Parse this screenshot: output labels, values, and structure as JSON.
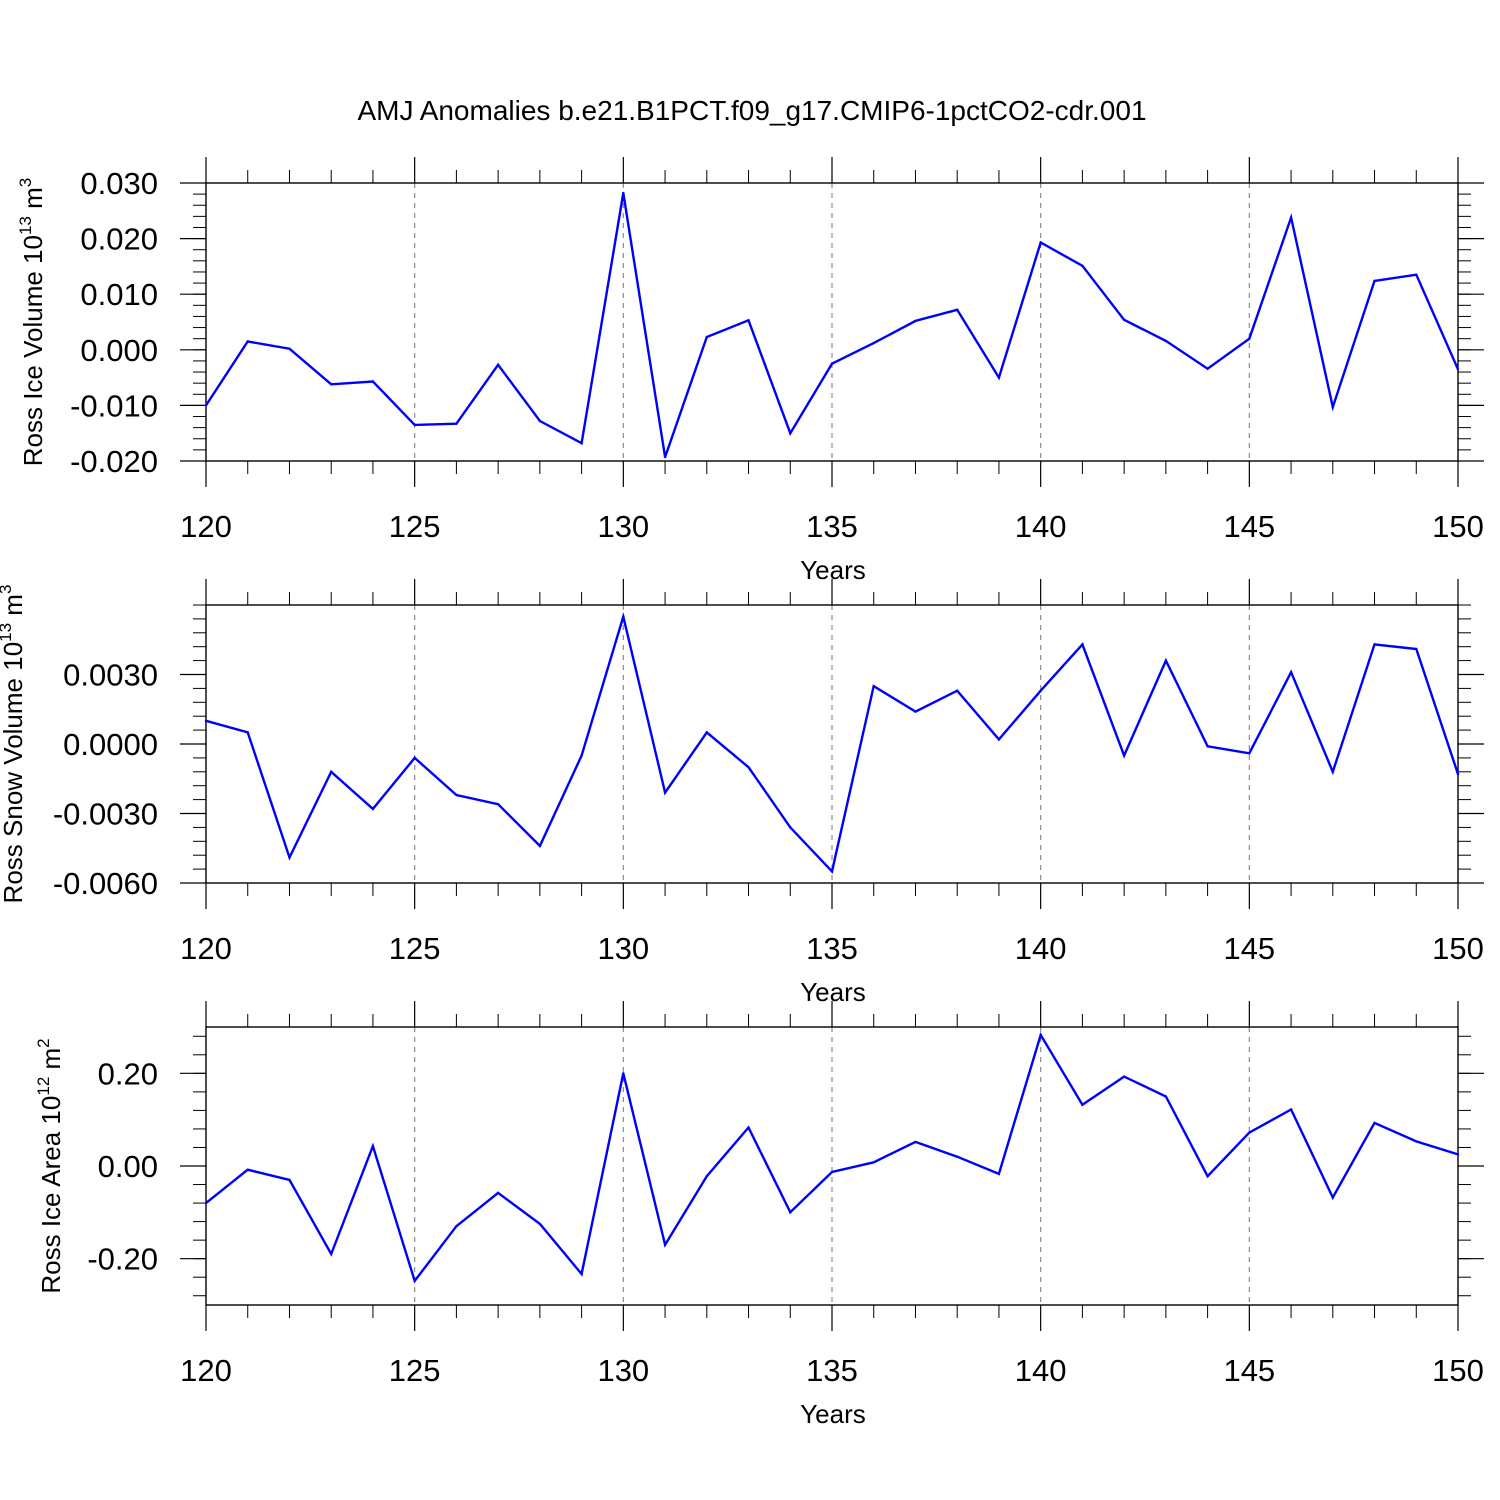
{
  "title": "AMJ Anomalies b.e21.B1PCT.f09_g17.CMIP6-1pctCO2-cdr.001",
  "colors": {
    "line": "#0000ff",
    "axis": "#000000",
    "grid": "#8c8c8c"
  },
  "chart_data": [
    {
      "type": "line",
      "ylabel": {
        "text": "Ross Ice Volume 10",
        "exp": "13",
        "unit": "m",
        "unit_exp": "3"
      },
      "xlabel": "Years",
      "xlim": [
        120,
        150
      ],
      "ylim": [
        -0.02,
        0.03
      ],
      "x_ticks": [
        "120",
        "125",
        "130",
        "135",
        "140",
        "145",
        "150"
      ],
      "y_ticks": [
        {
          "value": 0.03,
          "label": "0.030"
        },
        {
          "value": 0.02,
          "label": "0.020"
        },
        {
          "value": 0.01,
          "label": "0.010"
        },
        {
          "value": 0.0,
          "label": "0.000"
        },
        {
          "value": -0.01,
          "label": "-0.010"
        },
        {
          "value": -0.02,
          "label": "-0.020"
        }
      ],
      "grid": "dashed vertical lines at major x ticks",
      "x": [
        120,
        121,
        122,
        123,
        124,
        125,
        126,
        127,
        128,
        129,
        130,
        131,
        132,
        133,
        134,
        135,
        136,
        137,
        138,
        139,
        140,
        141,
        142,
        143,
        144,
        145,
        146,
        147,
        148,
        149,
        150
      ],
      "values": [
        -0.01,
        0.0015,
        0.0002,
        -0.0062,
        -0.0057,
        -0.0135,
        -0.0133,
        -0.0027,
        -0.0128,
        -0.0168,
        0.0282,
        -0.0193,
        0.0023,
        0.0053,
        -0.015,
        -0.0025,
        0.0012,
        0.0052,
        0.0072,
        -0.005,
        0.0193,
        0.0151,
        0.0054,
        0.0016,
        -0.0034,
        0.002,
        0.0238,
        -0.0103,
        0.0124,
        0.0135,
        -0.0035
      ]
    },
    {
      "type": "line",
      "ylabel": {
        "text": "Ross Snow Volume 10",
        "exp": "13",
        "unit": "m",
        "unit_exp": "3"
      },
      "xlabel": "Years",
      "xlim": [
        120,
        150
      ],
      "ylim": [
        -0.006,
        0.006
      ],
      "x_ticks": [
        "120",
        "125",
        "130",
        "135",
        "140",
        "145",
        "150"
      ],
      "y_ticks": [
        {
          "value": 0.003,
          "label": "0.0030"
        },
        {
          "value": 0.0,
          "label": "0.0000"
        },
        {
          "value": -0.003,
          "label": "-0.0030"
        },
        {
          "value": -0.006,
          "label": "-0.0060"
        }
      ],
      "grid": "dashed vertical lines at major x ticks",
      "x": [
        120,
        121,
        122,
        123,
        124,
        125,
        126,
        127,
        128,
        129,
        130,
        131,
        132,
        133,
        134,
        135,
        136,
        137,
        138,
        139,
        140,
        141,
        142,
        143,
        144,
        145,
        146,
        147,
        148,
        149,
        150
      ],
      "values": [
        0.001,
        0.0005,
        -0.0049,
        -0.0012,
        -0.0028,
        -0.0006,
        -0.0022,
        -0.0026,
        -0.0044,
        -0.0005,
        0.0055,
        -0.0021,
        0.0005,
        -0.001,
        -0.0036,
        -0.0055,
        0.0025,
        0.0014,
        0.0023,
        0.0002,
        0.0023,
        0.0043,
        -0.0005,
        0.0036,
        -0.0001,
        -0.0004,
        0.0031,
        -0.0012,
        0.0043,
        0.0041,
        -0.0013
      ]
    },
    {
      "type": "line",
      "ylabel": {
        "text": "Ross Ice Area 10",
        "exp": "12",
        "unit": "m",
        "unit_exp": "2"
      },
      "xlabel": "Years",
      "xlim": [
        120,
        150
      ],
      "ylim": [
        -0.3,
        0.3
      ],
      "x_ticks": [
        "120",
        "125",
        "130",
        "135",
        "140",
        "145",
        "150"
      ],
      "y_ticks": [
        {
          "value": 0.2,
          "label": "0.20"
        },
        {
          "value": 0.0,
          "label": "0.00"
        },
        {
          "value": -0.2,
          "label": "-0.20"
        }
      ],
      "grid": "dashed vertical lines at major x ticks",
      "x": [
        120,
        121,
        122,
        123,
        124,
        125,
        126,
        127,
        128,
        129,
        130,
        131,
        132,
        133,
        134,
        135,
        136,
        137,
        138,
        139,
        140,
        141,
        142,
        143,
        144,
        145,
        146,
        147,
        148,
        149,
        150
      ],
      "values": [
        -0.08,
        -0.008,
        -0.03,
        -0.19,
        0.043,
        -0.248,
        -0.13,
        -0.058,
        -0.125,
        -0.233,
        0.2,
        -0.17,
        -0.022,
        0.083,
        -0.1,
        -0.013,
        0.008,
        0.052,
        0.02,
        -0.017,
        0.283,
        0.132,
        0.193,
        0.15,
        -0.022,
        0.072,
        0.122,
        -0.068,
        0.093,
        0.053,
        0.025
      ]
    }
  ]
}
